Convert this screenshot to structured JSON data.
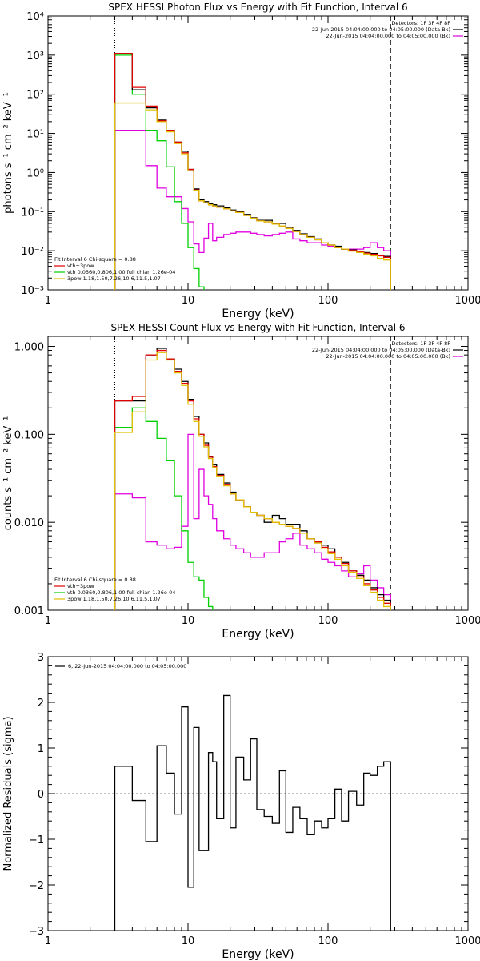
{
  "colors": {
    "data": "#000000",
    "total": "#e00000",
    "thermal": "#00d000",
    "power": "#e0c000",
    "background": "#e000e0",
    "frame": "#000000"
  },
  "chart_data": [
    {
      "id": "photon",
      "type": "line",
      "title": "SPEX HESSI Photon Flux vs Energy with Fit Function, Interval 6",
      "xlabel": "Energy (keV)",
      "ylabel": "photons s⁻¹ cm⁻² keV⁻¹",
      "xscale": "log",
      "yscale": "log",
      "xlim": [
        1,
        1000
      ],
      "ylim": [
        0.001,
        10000
      ],
      "x_ticks": [
        1,
        10,
        100,
        1000
      ],
      "x_tick_labels": [
        "1",
        "10",
        "100",
        "1000"
      ],
      "y_ticks": [
        0.001,
        0.01,
        0.1,
        1,
        10,
        100,
        1000,
        10000
      ],
      "y_tick_labels": [
        "10⁻³",
        "10⁻²",
        "10⁻¹",
        "10⁰",
        "10¹",
        "10²",
        "10³",
        "10⁴"
      ],
      "fit_range": [
        3,
        280
      ],
      "legend_right": [
        "Detectors: 1F 3F 4F 8F",
        "22-Jun-2015 04:04:00.000 to 04:05:00.000 (Data-Bk)",
        "22-Jun-2015 04:04:00.000 to 04:05:00.000 (Bk)"
      ],
      "legend_left": [
        "Fit Interval 6   Chi-square = 0.88",
        "vth+3pow",
        "vth 0.0360,0.806,1.00  full chian 1.26e-04",
        "3pow 1.18,1.50,7.26,10.6,11.5,1.07"
      ],
      "edges": [
        3,
        4,
        5,
        6,
        7,
        8,
        9,
        10,
        11,
        12,
        13,
        14,
        15,
        16,
        18,
        20,
        22,
        25,
        28,
        31,
        35,
        40,
        45,
        50,
        56,
        63,
        71,
        80,
        90,
        100,
        112,
        125,
        140,
        160,
        180,
        200,
        225,
        250,
        280
      ],
      "series": [
        {
          "name": "Data-Bk",
          "color": "#000000",
          "values": [
            1100,
            130,
            45,
            22,
            12,
            6,
            3.5,
            1.2,
            0.38,
            0.2,
            0.18,
            0.16,
            0.15,
            0.14,
            0.125,
            0.11,
            0.1,
            0.085,
            0.07,
            0.06,
            0.06,
            0.05,
            0.05,
            0.04,
            0.033,
            0.027,
            0.023,
            0.02,
            0.016,
            0.014,
            0.013,
            0.011,
            0.0105,
            0.0095,
            0.009,
            0.0085,
            0.0075,
            0.0072
          ]
        },
        {
          "name": "vth+3pow",
          "color": "#e00000",
          "values": [
            1100,
            150,
            50,
            21,
            12,
            6,
            3.2,
            1.2,
            0.36,
            0.19,
            0.17,
            0.15,
            0.14,
            0.13,
            0.118,
            0.105,
            0.095,
            0.08,
            0.068,
            0.058,
            0.055,
            0.048,
            0.043,
            0.037,
            0.031,
            0.026,
            0.022,
            0.019,
            0.016,
            0.014,
            0.012,
            0.011,
            0.0102,
            0.0093,
            0.0087,
            0.0081,
            0.0074,
            0.0068
          ]
        },
        {
          "name": "vth",
          "color": "#00d000",
          "values": [
            1000,
            100,
            12,
            6.5,
            1.4,
            0.18,
            0.05,
            0.012,
            0.0035,
            0.0012,
            0.0009
          ]
        },
        {
          "name": "3pow",
          "color": "#e0c000",
          "values": [
            60,
            60,
            40,
            20,
            11,
            5.5,
            3.0,
            1.1,
            0.35,
            0.19,
            0.17,
            0.15,
            0.14,
            0.13,
            0.118,
            0.105,
            0.095,
            0.08,
            0.068,
            0.058,
            0.055,
            0.048,
            0.043,
            0.037,
            0.031,
            0.026,
            0.022,
            0.019,
            0.016,
            0.014,
            0.012,
            0.011,
            0.0098,
            0.009,
            0.0082,
            0.0074,
            0.0064,
            0.0058
          ]
        },
        {
          "name": "Bk",
          "color": "#e000e0",
          "values": [
            12,
            12,
            1.5,
            0.4,
            0.24,
            0.24,
            0.12,
            0.055,
            0.015,
            0.009,
            0.021,
            0.05,
            0.018,
            0.022,
            0.026,
            0.028,
            0.03,
            0.03,
            0.028,
            0.026,
            0.024,
            0.026,
            0.028,
            0.03,
            0.02,
            0.018,
            0.016,
            0.016,
            0.014,
            0.013,
            0.012,
            0.011,
            0.011,
            0.011,
            0.012,
            0.016,
            0.012,
            0.01
          ]
        }
      ]
    },
    {
      "id": "count",
      "type": "line",
      "title": "SPEX HESSI Count Flux vs Energy with Fit Function, Interval 6",
      "xlabel": "Energy (keV)",
      "ylabel": "counts s⁻¹ cm⁻² keV⁻¹",
      "xscale": "log",
      "yscale": "log",
      "xlim": [
        1,
        1000
      ],
      "ylim": [
        0.001,
        1.3
      ],
      "x_ticks": [
        1,
        10,
        100,
        1000
      ],
      "x_tick_labels": [
        "1",
        "10",
        "100",
        "1000"
      ],
      "y_ticks": [
        0.001,
        0.01,
        0.1,
        1
      ],
      "y_tick_labels": [
        "0.001",
        "0.010",
        "0.100",
        "1.000"
      ],
      "fit_range": [
        3,
        280
      ],
      "legend_right": [
        "Detectors: 1F 3F 4F 8F",
        "22-Jun-2015 04:04:00.000 to 04:05:00.000 (Data-Bk)",
        "22-Jun-2015 04:04:00.000 to 04:05:00.000 (Bk)"
      ],
      "legend_left": [
        "Fit Interval 6   Chi-square = 0.88",
        "vth+3pow",
        "vth 0.0360,0.806,1.00  full chian 1.26e-04",
        "3pow 1.18,1.50,7.26,10.6,11.5,1.07"
      ],
      "edges": [
        3,
        4,
        5,
        6,
        7,
        8,
        9,
        10,
        11,
        12,
        13,
        14,
        15,
        16,
        18,
        20,
        22,
        25,
        28,
        31,
        35,
        40,
        45,
        50,
        56,
        63,
        71,
        80,
        90,
        100,
        112,
        125,
        140,
        160,
        180,
        200,
        225,
        250,
        280
      ],
      "series": [
        {
          "name": "Data-Bk",
          "color": "#000000",
          "values": [
            0.24,
            0.24,
            0.78,
            0.95,
            0.72,
            0.55,
            0.4,
            0.25,
            0.16,
            0.1,
            0.08,
            0.056,
            0.045,
            0.035,
            0.028,
            0.022,
            0.018,
            0.015,
            0.013,
            0.012,
            0.01,
            0.012,
            0.011,
            0.0095,
            0.0095,
            0.008,
            0.0065,
            0.006,
            0.0055,
            0.005,
            0.004,
            0.0035,
            0.0028,
            0.0025,
            0.0022,
            0.0018,
            0.0015,
            0.0013
          ]
        },
        {
          "name": "vth+3pow",
          "color": "#e00000",
          "values": [
            0.24,
            0.27,
            0.8,
            0.9,
            0.72,
            0.52,
            0.38,
            0.24,
            0.15,
            0.1,
            0.075,
            0.055,
            0.043,
            0.034,
            0.027,
            0.021,
            0.018,
            0.015,
            0.013,
            0.012,
            0.011,
            0.01,
            0.0095,
            0.009,
            0.0085,
            0.0075,
            0.0065,
            0.006,
            0.0052,
            0.0046,
            0.004,
            0.0034,
            0.0028,
            0.0024,
            0.002,
            0.0017,
            0.0014,
            0.0012
          ]
        },
        {
          "name": "vth",
          "color": "#00d000",
          "values": [
            0.12,
            0.2,
            0.14,
            0.09,
            0.05,
            0.02,
            0.008,
            0.0035,
            0.0024,
            0.0022,
            0.0014,
            0.0011,
            0.0009
          ]
        },
        {
          "name": "3pow",
          "color": "#e0c000",
          "values": [
            0.105,
            0.18,
            0.7,
            0.85,
            0.7,
            0.5,
            0.36,
            0.22,
            0.14,
            0.095,
            0.072,
            0.053,
            0.042,
            0.033,
            0.026,
            0.021,
            0.018,
            0.015,
            0.013,
            0.012,
            0.011,
            0.01,
            0.0095,
            0.009,
            0.0085,
            0.0075,
            0.0065,
            0.0058,
            0.005,
            0.0044,
            0.0038,
            0.0032,
            0.0027,
            0.0023,
            0.0019,
            0.0016,
            0.0013,
            0.0011
          ]
        },
        {
          "name": "Bk",
          "color": "#e000e0",
          "values": [
            0.021,
            0.019,
            0.006,
            0.0055,
            0.005,
            0.0052,
            0.009,
            0.1,
            0.011,
            0.04,
            0.02,
            0.016,
            0.011,
            0.008,
            0.0065,
            0.0055,
            0.005,
            0.0045,
            0.004,
            0.004,
            0.0045,
            0.0045,
            0.006,
            0.0065,
            0.0075,
            0.0055,
            0.005,
            0.0045,
            0.0038,
            0.0035,
            0.0032,
            0.0028,
            0.0024,
            0.0026,
            0.0032,
            0.0022,
            0.0018,
            0.0015
          ]
        }
      ]
    },
    {
      "id": "resid",
      "type": "line",
      "title": "",
      "xlabel": "Energy (keV)",
      "ylabel": "Normalized Residuals (sigma)",
      "xscale": "log",
      "yscale": "linear",
      "xlim": [
        1,
        1000
      ],
      "ylim": [
        -3,
        3
      ],
      "x_ticks": [
        1,
        10,
        100,
        1000
      ],
      "x_tick_labels": [
        "1",
        "10",
        "100",
        "1000"
      ],
      "y_ticks": [
        -3,
        -2,
        -1,
        0,
        1,
        2,
        3
      ],
      "y_tick_labels": [
        "−3",
        "−2",
        "−1",
        "0",
        "1",
        "2",
        "3"
      ],
      "legend_left": [
        "6, 22-Jun-2015 04:04:00.000 to 04:05:00.000"
      ],
      "edges": [
        3,
        4,
        5,
        6,
        7,
        8,
        9,
        10,
        11,
        12,
        13,
        14,
        15,
        16,
        18,
        20,
        22,
        25,
        28,
        31,
        35,
        40,
        45,
        50,
        56,
        63,
        71,
        80,
        90,
        100,
        112,
        125,
        140,
        160,
        180,
        200,
        225,
        250,
        280
      ],
      "series": [
        {
          "name": "6, 22-Jun-2015 04:04:00.000 to 04:05:00.000",
          "color": "#000000",
          "values": [
            0.6,
            -0.15,
            -1.05,
            1.05,
            0.45,
            -0.45,
            1.9,
            -2.05,
            1.45,
            -1.25,
            -1.25,
            0.9,
            0.7,
            -0.55,
            2.15,
            -0.75,
            0.8,
            0.3,
            1.2,
            -0.35,
            -0.5,
            -0.65,
            0.5,
            -0.85,
            -0.3,
            -0.55,
            -0.9,
            -0.6,
            -0.75,
            -0.55,
            0.1,
            -0.6,
            0.05,
            -0.25,
            0.45,
            0.4,
            0.6,
            0.7
          ]
        }
      ]
    }
  ]
}
